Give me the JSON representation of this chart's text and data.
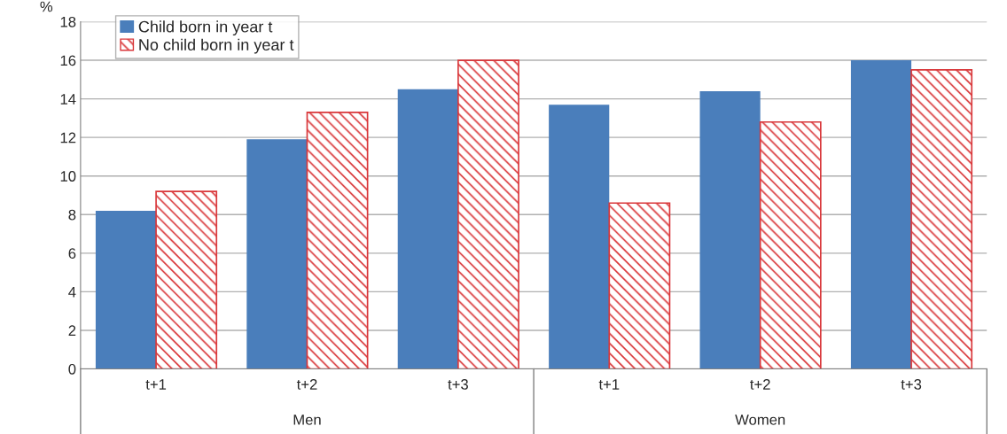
{
  "chart_data": {
    "type": "bar",
    "ylabel": "%",
    "categories": [
      "t+1",
      "t+2",
      "t+3",
      "t+1",
      "t+2",
      "t+3"
    ],
    "series": [
      {
        "name": "Child born in year t",
        "color": "#4a7ebb",
        "values": [
          8.2,
          11.9,
          14.5,
          13.7,
          14.4,
          16.0
        ]
      },
      {
        "name": "No child born in year t",
        "color": "#d9373a",
        "values": [
          9.2,
          13.3,
          16.0,
          8.6,
          12.8,
          15.5
        ]
      }
    ],
    "ylim": [
      0,
      18
    ],
    "yticks": [
      0,
      2,
      4,
      6,
      8,
      10,
      12,
      14,
      16,
      18
    ],
    "grid": "y",
    "legend": "top left",
    "annotations": [
      "Men",
      "Women"
    ]
  }
}
